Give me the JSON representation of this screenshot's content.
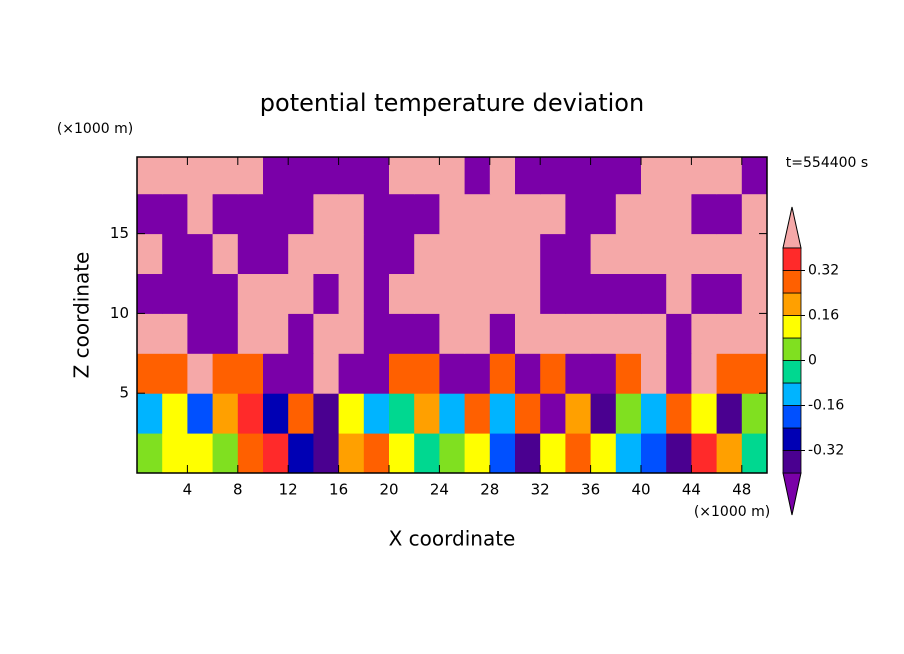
{
  "chart_data": {
    "type": "contour",
    "title": "potential temperature deviation",
    "xlabel": "X coordinate",
    "ylabel": "Z coordinate",
    "xunit": "(×1000 m)",
    "yunit": "(×1000 m)",
    "time_label": "t=554400 s",
    "xlim": [
      0,
      50
    ],
    "ylim": [
      0,
      19.8
    ],
    "xticks": [
      4,
      8,
      12,
      16,
      20,
      24,
      28,
      32,
      36,
      40,
      44,
      48
    ],
    "yticks": [
      5,
      10,
      15
    ],
    "x": [
      1,
      3,
      5,
      7,
      9,
      11,
      13,
      15,
      17,
      19,
      21,
      23,
      25,
      27,
      29,
      31,
      33,
      35,
      37,
      39,
      41,
      43,
      45,
      47,
      49
    ],
    "y": [
      1.25,
      3.75,
      6.25,
      8.75,
      11.25,
      13.75,
      16.25,
      18.75
    ],
    "z": [
      [
        0.05,
        0.1,
        0.12,
        0.05,
        0.3,
        0.35,
        -0.3,
        -0.35,
        0.2,
        0.3,
        0.1,
        -0.05,
        0.05,
        0.1,
        -0.2,
        -0.4,
        0.1,
        0.3,
        0.15,
        -0.1,
        -0.2,
        -0.38,
        0.35,
        0.2,
        -0.05
      ],
      [
        -0.1,
        0.15,
        -0.2,
        0.2,
        0.35,
        -0.3,
        0.3,
        -0.35,
        0.15,
        -0.1,
        -0.05,
        0.2,
        -0.1,
        0.25,
        -0.15,
        0.3,
        -0.45,
        0.2,
        -0.35,
        0.05,
        -0.1,
        0.3,
        0.15,
        -0.4,
        0.05
      ],
      [
        0.3,
        0.3,
        0.45,
        0.25,
        0.3,
        -0.45,
        -0.45,
        0.45,
        -0.45,
        -0.45,
        0.3,
        0.3,
        -0.45,
        -0.45,
        0.3,
        -0.45,
        0.3,
        -0.45,
        -0.45,
        0.3,
        0.45,
        -0.45,
        0.45,
        0.3,
        0.3
      ],
      [
        0.45,
        0.45,
        -0.45,
        -0.45,
        0.45,
        0.45,
        -0.45,
        0.45,
        0.45,
        -0.45,
        -0.45,
        -0.45,
        0.45,
        0.45,
        -0.45,
        0.45,
        0.45,
        0.45,
        0.45,
        0.45,
        0.45,
        -0.45,
        0.45,
        0.45,
        0.45
      ],
      [
        -0.45,
        -0.45,
        -0.45,
        -0.45,
        0.45,
        0.45,
        0.45,
        -0.45,
        0.45,
        -0.45,
        0.45,
        0.45,
        0.45,
        0.45,
        0.45,
        0.45,
        -0.45,
        -0.45,
        -0.45,
        -0.45,
        -0.45,
        0.45,
        -0.45,
        -0.45,
        0.45
      ],
      [
        0.45,
        -0.45,
        -0.45,
        0.45,
        -0.45,
        -0.45,
        0.45,
        0.45,
        0.45,
        -0.45,
        -0.45,
        0.45,
        0.45,
        0.45,
        0.45,
        0.45,
        -0.45,
        -0.45,
        0.45,
        0.45,
        0.45,
        0.45,
        0.45,
        0.45,
        0.45
      ],
      [
        -0.45,
        -0.45,
        0.45,
        -0.45,
        -0.45,
        -0.45,
        -0.45,
        0.45,
        0.45,
        -0.45,
        -0.45,
        -0.45,
        0.45,
        0.45,
        0.45,
        0.45,
        0.45,
        -0.45,
        -0.45,
        0.45,
        0.45,
        0.45,
        -0.45,
        -0.45,
        0.45
      ],
      [
        0.45,
        0.45,
        0.45,
        0.45,
        0.45,
        -0.45,
        -0.45,
        -0.45,
        -0.45,
        -0.45,
        0.45,
        0.45,
        0.45,
        -0.45,
        0.45,
        -0.45,
        -0.45,
        -0.45,
        -0.45,
        -0.45,
        0.45,
        0.45,
        0.45,
        0.45,
        -0.45
      ]
    ],
    "levels": [
      -0.4,
      -0.32,
      -0.24,
      -0.16,
      -0.08,
      0,
      0.08,
      0.16,
      0.24,
      0.32,
      0.4
    ],
    "colors": [
      "#7a00a8",
      "#4a0090",
      "#0000b4",
      "#0050ff",
      "#00b4ff",
      "#00d890",
      "#80e020",
      "#ffff00",
      "#ffa000",
      "#ff6000",
      "#ff2a2a",
      "#f5a8a8"
    ],
    "cbar_ticks": [
      0.32,
      0.16,
      0,
      -0.16,
      -0.32
    ]
  }
}
